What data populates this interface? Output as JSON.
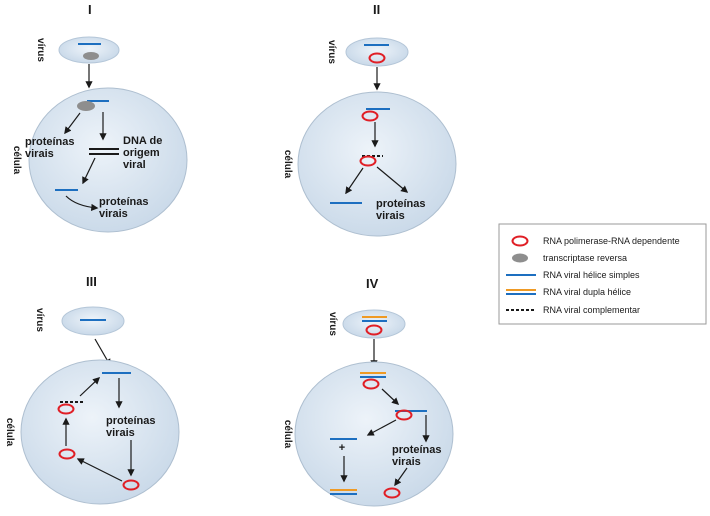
{
  "colors": {
    "cell_fill": "#d3e1ee",
    "cell_edge": "#aebfd0",
    "blue_strand": "#1d6fc0",
    "orange_strand": "#ef9a24",
    "polymerase": "#e01f26",
    "reverse_transcriptase": "#8e8e8e",
    "arrow": "#1a1a1a"
  },
  "panels": [
    {
      "numeral": "I",
      "virus_label": "vírus",
      "cell_label": "célula",
      "texts": [
        "proteínas",
        "virais",
        "DNA de",
        "origem",
        "viral",
        "proteínas",
        "virais"
      ]
    },
    {
      "numeral": "II",
      "virus_label": "vírus",
      "cell_label": "célula",
      "texts": [
        "proteínas",
        "virais"
      ]
    },
    {
      "numeral": "III",
      "virus_label": "vírus",
      "cell_label": "célula",
      "texts": [
        "proteínas",
        "virais"
      ]
    },
    {
      "numeral": "IV",
      "virus_label": "vírus",
      "cell_label": "célula",
      "texts": [
        "+",
        "proteínas",
        "virais"
      ]
    }
  ],
  "legend": {
    "items": [
      {
        "icon": "polymerase-icon",
        "label": "RNA polimerase-RNA dependente"
      },
      {
        "icon": "reverse-transcriptase-icon",
        "label": "transcriptase reversa"
      },
      {
        "icon": "single-strand-icon",
        "label": "RNA viral hélice simples"
      },
      {
        "icon": "double-strand-icon",
        "label": "RNA viral dupla hélice"
      },
      {
        "icon": "complementary-icon",
        "label": "RNA viral complementar"
      }
    ]
  }
}
